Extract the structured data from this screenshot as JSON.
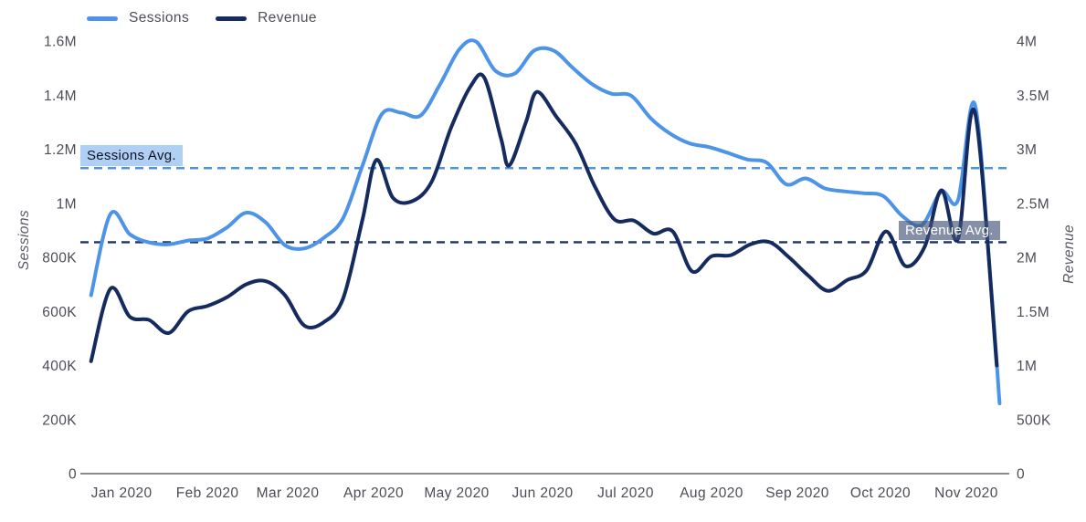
{
  "legend": {
    "items": [
      {
        "label": "Sessions",
        "color": "#4d94e9"
      },
      {
        "label": "Revenue",
        "color": "#152a5e"
      }
    ]
  },
  "annotations": {
    "sessions_avg": {
      "label": "Sessions Avg.",
      "value": 1130000,
      "color": "#4d94e9"
    },
    "revenue_avg": {
      "label": "Revenue Avg.",
      "value": 2140000,
      "color": "#1d3461"
    }
  },
  "chart_data": {
    "type": "line",
    "title": "",
    "x_unit": "days_since_2020-01-01",
    "x_range_days": [
      0,
      334
    ],
    "x_axis": {
      "ticks": [
        "Jan 2020",
        "Feb 2020",
        "Mar 2020",
        "Apr 2020",
        "May 2020",
        "Jun 2020",
        "Jul 2020",
        "Aug 2020",
        "Sep 2020",
        "Oct 2020",
        "Nov 2020"
      ],
      "tick_days": [
        14,
        45,
        74,
        105,
        135,
        166,
        196,
        227,
        258,
        288,
        319
      ]
    },
    "y_left": {
      "title": "Sessions",
      "range": [
        0,
        1600000
      ],
      "ticks": [
        {
          "label": "1.6M",
          "value": 1600000
        },
        {
          "label": "1.4M",
          "value": 1400000
        },
        {
          "label": "1.2M",
          "value": 1200000
        },
        {
          "label": "1M",
          "value": 1000000
        },
        {
          "label": "800K",
          "value": 800000
        },
        {
          "label": "600K",
          "value": 600000
        },
        {
          "label": "400K",
          "value": 400000
        },
        {
          "label": "200K",
          "value": 200000
        },
        {
          "label": "0",
          "value": 0
        }
      ]
    },
    "y_right": {
      "title": "Revenue",
      "range": [
        0,
        4000000
      ],
      "ticks": [
        {
          "label": "4M",
          "value": 4000000
        },
        {
          "label": "3.5M",
          "value": 3500000
        },
        {
          "label": "3M",
          "value": 3000000
        },
        {
          "label": "2.5M",
          "value": 2500000
        },
        {
          "label": "2M",
          "value": 2000000
        },
        {
          "label": "1.5M",
          "value": 1500000
        },
        {
          "label": "1M",
          "value": 1000000
        },
        {
          "label": "500K",
          "value": 500000
        },
        {
          "label": "0",
          "value": 0
        }
      ]
    },
    "series": [
      {
        "name": "Sessions",
        "axis": "left",
        "color": "#4d94e9",
        "points": [
          [
            3,
            660000
          ],
          [
            10,
            960000
          ],
          [
            17,
            885000
          ],
          [
            24,
            855000
          ],
          [
            31,
            848000
          ],
          [
            38,
            862000
          ],
          [
            45,
            870000
          ],
          [
            52,
            910000
          ],
          [
            59,
            965000
          ],
          [
            66,
            930000
          ],
          [
            73,
            845000
          ],
          [
            80,
            833000
          ],
          [
            87,
            872000
          ],
          [
            94,
            945000
          ],
          [
            101,
            1140000
          ],
          [
            108,
            1330000
          ],
          [
            115,
            1335000
          ],
          [
            122,
            1325000
          ],
          [
            129,
            1440000
          ],
          [
            136,
            1570000
          ],
          [
            142,
            1598000
          ],
          [
            149,
            1490000
          ],
          [
            156,
            1480000
          ],
          [
            163,
            1565000
          ],
          [
            170,
            1565000
          ],
          [
            177,
            1500000
          ],
          [
            184,
            1440000
          ],
          [
            191,
            1405000
          ],
          [
            198,
            1398000
          ],
          [
            205,
            1315000
          ],
          [
            212,
            1258000
          ],
          [
            219,
            1222000
          ],
          [
            226,
            1208000
          ],
          [
            233,
            1186000
          ],
          [
            240,
            1162000
          ],
          [
            247,
            1150000
          ],
          [
            254,
            1070000
          ],
          [
            261,
            1092000
          ],
          [
            268,
            1055000
          ],
          [
            275,
            1044000
          ],
          [
            282,
            1037000
          ],
          [
            289,
            1027000
          ],
          [
            296,
            952000
          ],
          [
            303,
            920000
          ],
          [
            310,
            1043000
          ],
          [
            316,
            1012000
          ],
          [
            322,
            1368000
          ],
          [
            328,
            680000
          ],
          [
            331,
            260000
          ]
        ]
      },
      {
        "name": "Revenue",
        "axis": "right",
        "color": "#152a5e",
        "points": [
          [
            3,
            1040000
          ],
          [
            10,
            1710000
          ],
          [
            17,
            1450000
          ],
          [
            24,
            1420000
          ],
          [
            31,
            1300000
          ],
          [
            38,
            1500000
          ],
          [
            45,
            1550000
          ],
          [
            52,
            1630000
          ],
          [
            59,
            1750000
          ],
          [
            66,
            1780000
          ],
          [
            73,
            1650000
          ],
          [
            80,
            1370000
          ],
          [
            87,
            1400000
          ],
          [
            94,
            1620000
          ],
          [
            101,
            2350000
          ],
          [
            106,
            2900000
          ],
          [
            112,
            2550000
          ],
          [
            119,
            2520000
          ],
          [
            126,
            2700000
          ],
          [
            133,
            3200000
          ],
          [
            140,
            3580000
          ],
          [
            145,
            3660000
          ],
          [
            151,
            3100000
          ],
          [
            154,
            2850000
          ],
          [
            160,
            3250000
          ],
          [
            164,
            3530000
          ],
          [
            171,
            3300000
          ],
          [
            178,
            3050000
          ],
          [
            185,
            2650000
          ],
          [
            192,
            2350000
          ],
          [
            199,
            2340000
          ],
          [
            206,
            2220000
          ],
          [
            213,
            2240000
          ],
          [
            220,
            1870000
          ],
          [
            227,
            2010000
          ],
          [
            234,
            2020000
          ],
          [
            241,
            2120000
          ],
          [
            248,
            2140000
          ],
          [
            255,
            2000000
          ],
          [
            262,
            1830000
          ],
          [
            269,
            1690000
          ],
          [
            276,
            1790000
          ],
          [
            283,
            1880000
          ],
          [
            290,
            2240000
          ],
          [
            297,
            1920000
          ],
          [
            304,
            2100000
          ],
          [
            310,
            2620000
          ],
          [
            316,
            2170000
          ],
          [
            322,
            3350000
          ],
          [
            330,
            1000000
          ]
        ]
      }
    ],
    "grid": "off",
    "legend_position": "top-left"
  }
}
